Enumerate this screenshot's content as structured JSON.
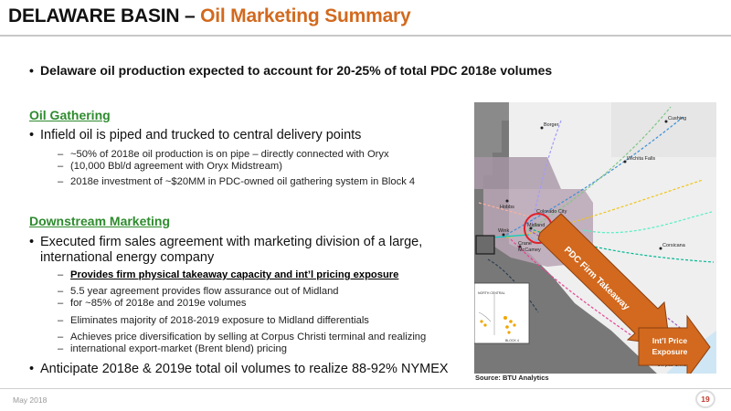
{
  "header": {
    "title_main": "DELAWARE BASIN – ",
    "title_sub": "Oil Marketing Summary"
  },
  "intro_bullet": "Delaware oil production expected to account for 20-25% of total PDC 2018e volumes",
  "oil_gathering": {
    "heading": "Oil Gathering",
    "bullet": "Infield oil is piped and trucked to central delivery points",
    "subs": [
      "~50% of 2018e oil production is on pipe – directly connected with Oryx",
      "(10,000 Bbl/d agreement with Oryx Midstream)",
      "2018e investment of ~$20MM in PDC-owned oil gathering system in Block 4"
    ]
  },
  "downstream": {
    "heading": "Downstream Marketing",
    "bullet_line1": "Executed firm sales agreement with marketing division of a large,",
    "bullet_line2": "international energy company",
    "subs": [
      "Provides firm physical takeaway capacity and int’l pricing exposure",
      "5.5 year agreement provides flow assurance out of Midland",
      "for ~85% of 2018e and 2019e volumes",
      "Eliminates majority of 2018-2019 exposure to Midland differentials",
      "Achieves price diversification by selling at Corpus Christi terminal and realizing",
      "international export-market (Brent blend) pricing"
    ],
    "final_bullet": "Anticipate 2018e & 2019e total oil volumes to realize 88-92% NYMEX"
  },
  "map": {
    "source": "Source: BTU Analytics",
    "firm_takeaway_label": "PDC Firm Takeaway",
    "price_exposure_label_1": "Int’l Price",
    "price_exposure_label_2": "Exposure",
    "accent_color": "#d2691e",
    "cities": {
      "cushing": "Cushing",
      "borger": "Borger",
      "wichita_falls": "Wichita Falls",
      "hobbs": "Hobbs",
      "colorado_city": "Colorado City",
      "midland": "Midland",
      "wink": "Wink",
      "crane": "Crane",
      "mccamey": "McCamey",
      "corsicana": "Corsicana",
      "corpus_christi": "Corpus Christi"
    },
    "inset": {
      "label_1": "NORTH CENTRAL",
      "label_2": "BLOCK 4"
    }
  },
  "footer": {
    "date": "May 2018",
    "page": "19"
  }
}
